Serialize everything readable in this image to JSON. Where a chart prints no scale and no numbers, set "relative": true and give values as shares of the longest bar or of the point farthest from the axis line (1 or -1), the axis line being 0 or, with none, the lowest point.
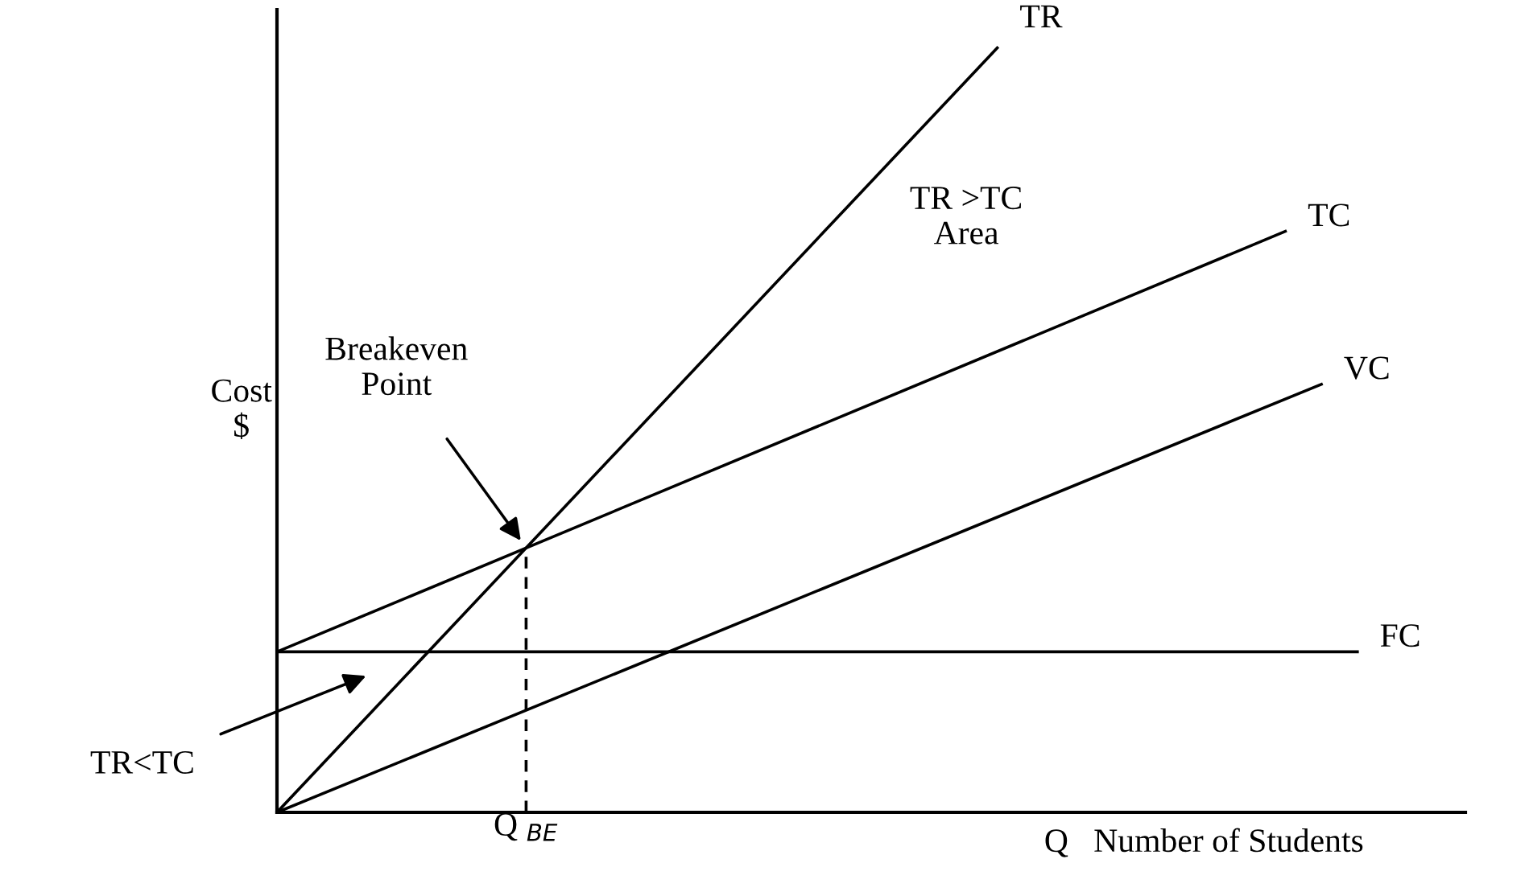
{
  "chart_data": {
    "type": "line",
    "relative": true,
    "xlabel": "Q   Number of Students",
    "ylabel": "Cost\n$",
    "legend": false,
    "marker": "none",
    "line_style": "solid",
    "categories": [
      null,
      null,
      null,
      null,
      null,
      null,
      null,
      null,
      null,
      null,
      null,
      null,
      null,
      null,
      null,
      null,
      null,
      null,
      null,
      null,
      null,
      null,
      null,
      null,
      null,
      null,
      null,
      null,
      null,
      null,
      null
    ],
    "series": [
      {
        "name": "TR",
        "color": "#000000",
        "values": [
          0,
          null,
          null,
          null,
          null,
          null,
          null,
          null,
          null,
          null,
          null,
          null,
          null,
          null,
          null,
          null,
          null,
          null,
          null,
          null,
          1,
          null,
          null,
          null,
          null,
          null,
          null,
          null,
          null,
          null,
          null
        ]
      },
      {
        "name": "TC",
        "color": "#000000",
        "values": [
          0.21,
          null,
          null,
          null,
          null,
          null,
          null,
          null,
          null,
          null,
          null,
          null,
          null,
          null,
          null,
          null,
          null,
          null,
          null,
          null,
          null,
          null,
          null,
          null,
          null,
          null,
          null,
          null,
          0.76,
          null,
          null
        ]
      },
      {
        "name": "VC",
        "color": "#000000",
        "values": [
          0,
          null,
          null,
          null,
          null,
          null,
          null,
          null,
          null,
          null,
          null,
          null,
          null,
          null,
          null,
          null,
          null,
          null,
          null,
          null,
          null,
          null,
          null,
          null,
          null,
          null,
          null,
          null,
          null,
          0.56,
          null
        ]
      },
      {
        "name": "FC",
        "color": "#000000",
        "values": [
          0.21,
          null,
          null,
          null,
          null,
          null,
          null,
          null,
          null,
          null,
          null,
          null,
          null,
          null,
          null,
          null,
          null,
          null,
          null,
          null,
          null,
          null,
          null,
          null,
          null,
          null,
          null,
          null,
          null,
          null,
          0.21
        ]
      }
    ],
    "annotations": [
      "Breakeven\nPoint",
      "TR >TC\nArea",
      "TR<TC",
      "Q $_{BE}$"
    ]
  }
}
